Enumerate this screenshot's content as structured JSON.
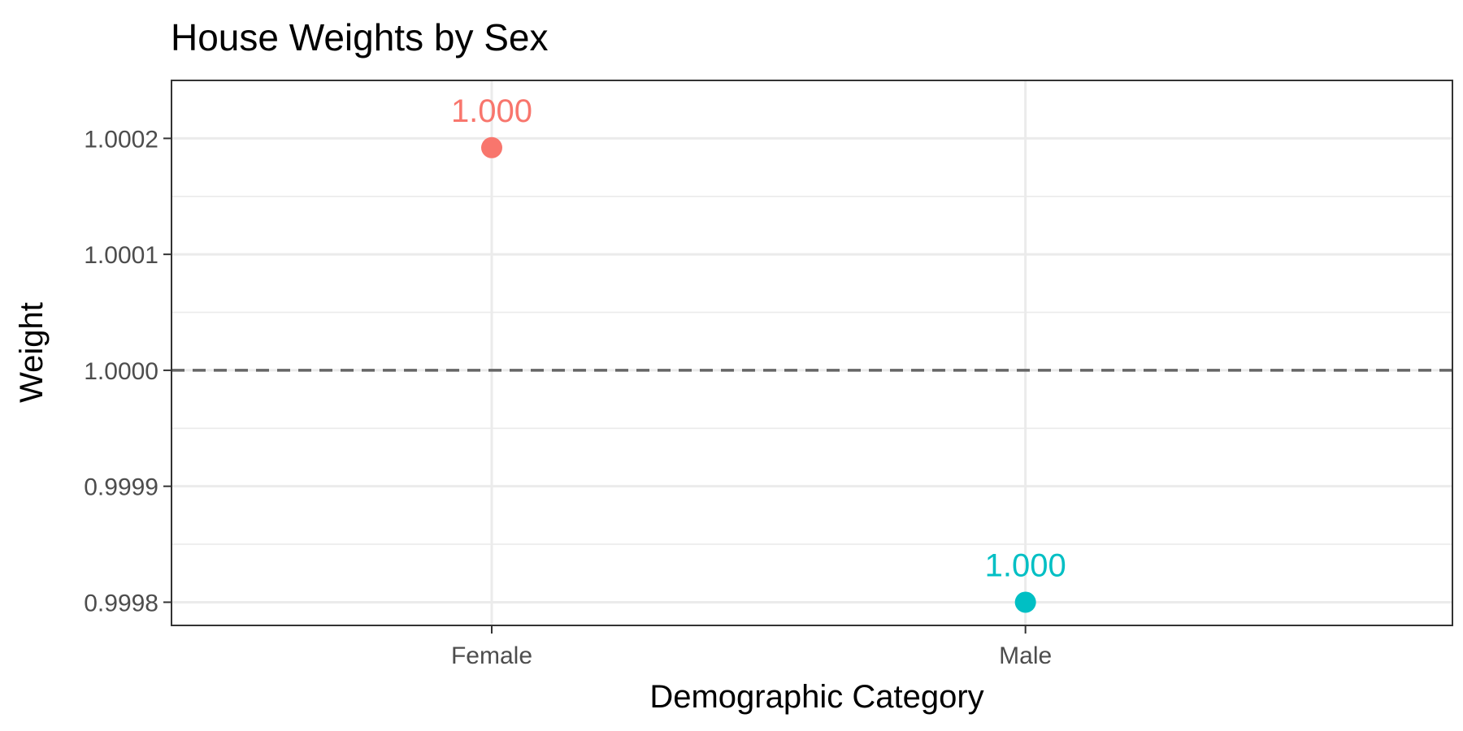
{
  "chart_data": {
    "type": "scatter",
    "title": "House Weights by Sex",
    "xlabel": "Demographic Category",
    "ylabel": "Weight",
    "categories": [
      "Female",
      "Male"
    ],
    "points": [
      {
        "category": "Female",
        "value": 1.000192,
        "label": "1.000",
        "color": "#F8766D"
      },
      {
        "category": "Male",
        "value": 0.9998,
        "label": "1.000",
        "color": "#00BFC4"
      }
    ],
    "ylim": [
      0.99978,
      1.00025
    ],
    "yticks": [
      0.9998,
      0.9999,
      1.0,
      1.0001,
      1.0002
    ],
    "ytick_labels": [
      "0.9998",
      "0.9999",
      "1.0000",
      "1.0001",
      "1.0002"
    ],
    "reference_line": {
      "y": 1.0,
      "style": "dashed",
      "color": "#666666"
    },
    "grid": true,
    "legend": "none"
  }
}
